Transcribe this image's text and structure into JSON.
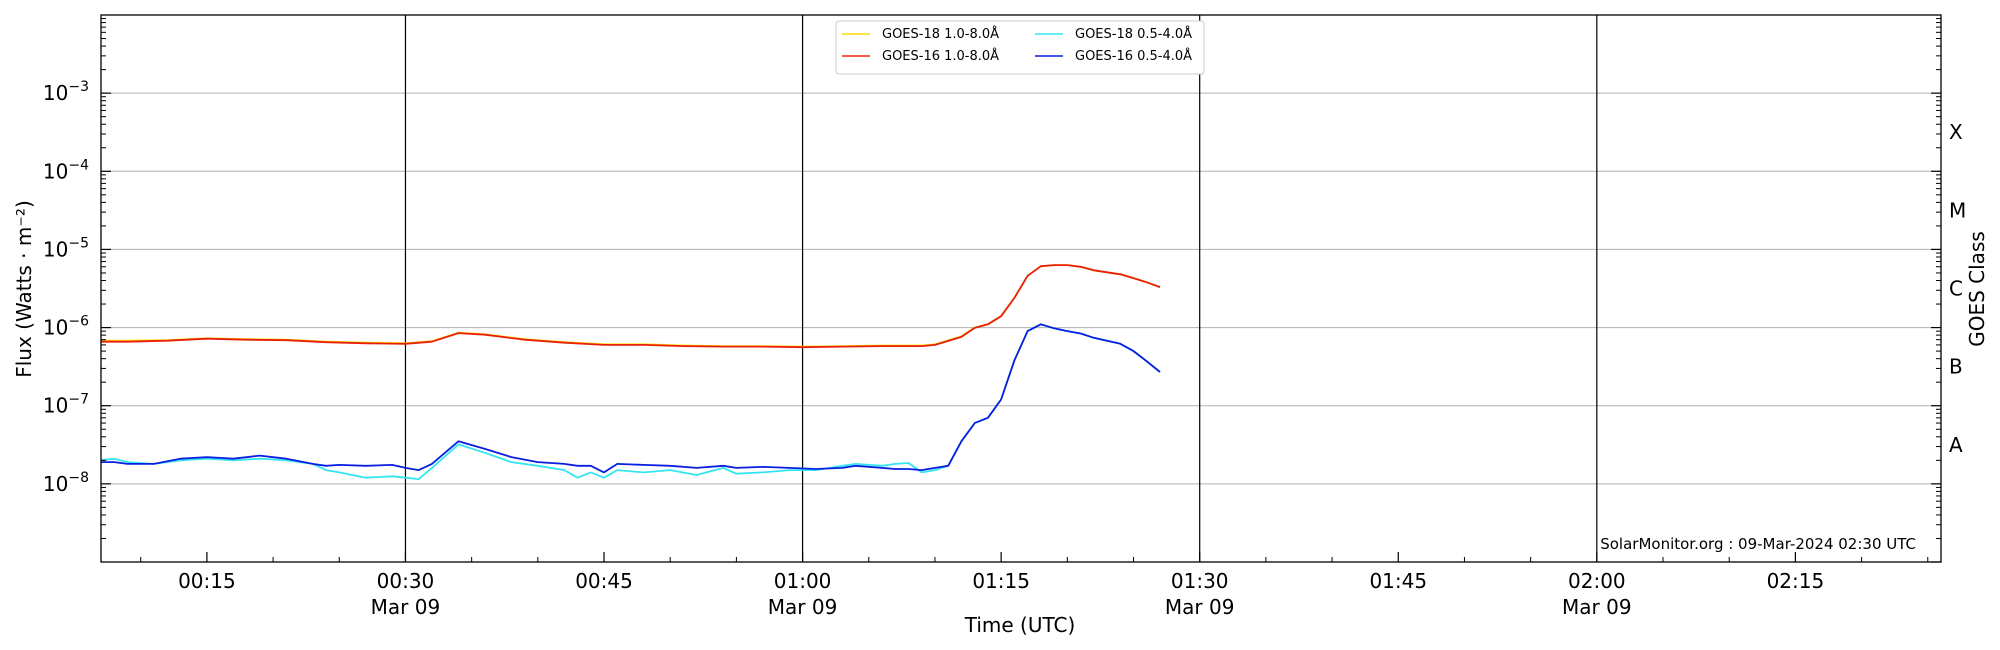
{
  "chart_data": {
    "type": "line",
    "title": "",
    "xlabel": "Time (UTC)",
    "ylabel": "Flux (Watts · m⁻²)",
    "ylabel_right": "GOES Class",
    "y_scale": "log",
    "ylim": [
      1e-09,
      0.01
    ],
    "xlim": [
      "00:07",
      "02:26"
    ],
    "grid": "horizontal",
    "legend_placement": "top-center",
    "credit": "SolarMonitor.org : 09-Mar-2024 02:30 UTC",
    "x_ticks": [
      {
        "time": "00:15",
        "label": "00:15",
        "sublabel": ""
      },
      {
        "time": "00:30",
        "label": "00:30",
        "sublabel": "Mar 09",
        "vline": true
      },
      {
        "time": "00:45",
        "label": "00:45",
        "sublabel": ""
      },
      {
        "time": "01:00",
        "label": "01:00",
        "sublabel": "Mar 09",
        "vline": true
      },
      {
        "time": "01:15",
        "label": "01:15",
        "sublabel": ""
      },
      {
        "time": "01:30",
        "label": "01:30",
        "sublabel": "Mar 09",
        "vline": true
      },
      {
        "time": "01:45",
        "label": "01:45",
        "sublabel": ""
      },
      {
        "time": "02:00",
        "label": "02:00",
        "sublabel": "Mar 09",
        "vline": true
      },
      {
        "time": "02:15",
        "label": "02:15",
        "sublabel": ""
      }
    ],
    "y_ticks": [
      {
        "value": 1e-08,
        "base": "10",
        "exp": "−8"
      },
      {
        "value": 1e-07,
        "base": "10",
        "exp": "−7"
      },
      {
        "value": 1e-06,
        "base": "10",
        "exp": "−6"
      },
      {
        "value": 1e-05,
        "base": "10",
        "exp": "−5"
      },
      {
        "value": 0.0001,
        "base": "10",
        "exp": "−4"
      },
      {
        "value": 0.001,
        "base": "10",
        "exp": "−3"
      }
    ],
    "class_labels": [
      {
        "label": "A",
        "value": 3.16e-08
      },
      {
        "label": "B",
        "value": 3.16e-07
      },
      {
        "label": "C",
        "value": 3.16e-06
      },
      {
        "label": "M",
        "value": 3.16e-05
      },
      {
        "label": "X",
        "value": 0.000316
      }
    ],
    "series": [
      {
        "name": "GOES-18 1.0-8.0Å",
        "color": "#ffd700",
        "legend_col": 0,
        "legend_row": 0,
        "points": [
          [
            "00:07",
            6.8e-07
          ],
          [
            "00:09",
            6.8e-07
          ],
          [
            "00:12",
            6.9e-07
          ],
          [
            "00:15",
            7.3e-07
          ],
          [
            "00:18",
            7.1e-07
          ],
          [
            "00:21",
            7e-07
          ],
          [
            "00:24",
            6.6e-07
          ],
          [
            "00:27",
            6.4e-07
          ],
          [
            "00:30",
            6.3e-07
          ],
          [
            "00:32",
            6.7e-07
          ],
          [
            "00:34",
            8.6e-07
          ],
          [
            "00:36",
            8.2e-07
          ],
          [
            "00:39",
            7.1e-07
          ],
          [
            "00:42",
            6.5e-07
          ],
          [
            "00:45",
            6.1e-07
          ],
          [
            "00:48",
            6.1e-07
          ],
          [
            "00:51",
            5.9e-07
          ],
          [
            "00:54",
            5.8e-07
          ],
          [
            "00:57",
            5.8e-07
          ],
          [
            "01:00",
            5.7e-07
          ],
          [
            "01:03",
            5.8e-07
          ],
          [
            "01:06",
            5.9e-07
          ],
          [
            "01:09",
            5.9e-07
          ],
          [
            "01:10",
            6.1e-07
          ],
          [
            "01:12",
            7.7e-07
          ],
          [
            "01:13",
            1e-06
          ],
          [
            "01:14",
            1.1e-06
          ],
          [
            "01:15",
            1.4e-06
          ],
          [
            "01:16",
            2.4e-06
          ],
          [
            "01:17",
            4.6e-06
          ],
          [
            "01:18",
            6.1e-06
          ],
          [
            "01:19",
            6.3e-06
          ],
          [
            "01:20",
            6.3e-06
          ],
          [
            "01:21",
            6e-06
          ],
          [
            "01:22",
            5.4e-06
          ],
          [
            "01:23",
            5.1e-06
          ],
          [
            "01:24",
            4.8e-06
          ],
          [
            "01:25",
            4.3e-06
          ],
          [
            "01:26",
            3.8e-06
          ],
          [
            "01:27",
            3.3e-06
          ]
        ]
      },
      {
        "name": "GOES-16 1.0-8.0Å",
        "color": "#e8200a",
        "legend_col": 0,
        "legend_row": 1,
        "points": [
          [
            "00:07",
            6.6e-07
          ],
          [
            "00:09",
            6.6e-07
          ],
          [
            "00:12",
            6.8e-07
          ],
          [
            "00:15",
            7.2e-07
          ],
          [
            "00:18",
            7e-07
          ],
          [
            "00:21",
            6.9e-07
          ],
          [
            "00:24",
            6.5e-07
          ],
          [
            "00:27",
            6.3e-07
          ],
          [
            "00:30",
            6.2e-07
          ],
          [
            "00:32",
            6.6e-07
          ],
          [
            "00:34",
            8.5e-07
          ],
          [
            "00:36",
            8.1e-07
          ],
          [
            "00:39",
            7e-07
          ],
          [
            "00:42",
            6.4e-07
          ],
          [
            "00:45",
            6e-07
          ],
          [
            "00:48",
            6e-07
          ],
          [
            "00:51",
            5.8e-07
          ],
          [
            "00:54",
            5.7e-07
          ],
          [
            "00:57",
            5.7e-07
          ],
          [
            "01:00",
            5.6e-07
          ],
          [
            "01:03",
            5.7e-07
          ],
          [
            "01:06",
            5.8e-07
          ],
          [
            "01:09",
            5.8e-07
          ],
          [
            "01:10",
            6e-07
          ],
          [
            "01:12",
            7.6e-07
          ],
          [
            "01:13",
            9.9e-07
          ],
          [
            "01:14",
            1.1e-06
          ],
          [
            "01:15",
            1.4e-06
          ],
          [
            "01:16",
            2.4e-06
          ],
          [
            "01:17",
            4.6e-06
          ],
          [
            "01:18",
            6.1e-06
          ],
          [
            "01:19",
            6.3e-06
          ],
          [
            "01:20",
            6.3e-06
          ],
          [
            "01:21",
            6e-06
          ],
          [
            "01:22",
            5.4e-06
          ],
          [
            "01:23",
            5.1e-06
          ],
          [
            "01:24",
            4.8e-06
          ],
          [
            "01:25",
            4.3e-06
          ],
          [
            "01:26",
            3.8e-06
          ],
          [
            "01:27",
            3.3e-06
          ]
        ]
      },
      {
        "name": "GOES-18 0.5-4.0Å",
        "color": "#33e6f0",
        "legend_col": 1,
        "legend_row": 0,
        "points": [
          [
            "00:07",
            2e-08
          ],
          [
            "00:08",
            2.1e-08
          ],
          [
            "00:09",
            1.9e-08
          ],
          [
            "00:11",
            1.8e-08
          ],
          [
            "00:13",
            2e-08
          ],
          [
            "00:15",
            2.1e-08
          ],
          [
            "00:17",
            2e-08
          ],
          [
            "00:19",
            2.1e-08
          ],
          [
            "00:21",
            2e-08
          ],
          [
            "00:23",
            1.8e-08
          ],
          [
            "00:24",
            1.5e-08
          ],
          [
            "00:25",
            1.4e-08
          ],
          [
            "00:27",
            1.2e-08
          ],
          [
            "00:29",
            1.25e-08
          ],
          [
            "00:30",
            1.2e-08
          ],
          [
            "00:31",
            1.15e-08
          ],
          [
            "00:32",
            1.6e-08
          ],
          [
            "00:34",
            3.2e-08
          ],
          [
            "00:36",
            2.5e-08
          ],
          [
            "00:38",
            1.9e-08
          ],
          [
            "00:40",
            1.7e-08
          ],
          [
            "00:42",
            1.5e-08
          ],
          [
            "00:43",
            1.2e-08
          ],
          [
            "00:44",
            1.4e-08
          ],
          [
            "00:45",
            1.2e-08
          ],
          [
            "00:46",
            1.5e-08
          ],
          [
            "00:48",
            1.4e-08
          ],
          [
            "00:50",
            1.5e-08
          ],
          [
            "00:52",
            1.3e-08
          ],
          [
            "00:54",
            1.6e-08
          ],
          [
            "00:55",
            1.35e-08
          ],
          [
            "00:57",
            1.4e-08
          ],
          [
            "00:59",
            1.5e-08
          ],
          [
            "01:01",
            1.5e-08
          ],
          [
            "01:03",
            1.7e-08
          ],
          [
            "01:04",
            1.8e-08
          ],
          [
            "01:06",
            1.7e-08
          ],
          [
            "01:07",
            1.8e-08
          ],
          [
            "01:08",
            1.85e-08
          ],
          [
            "01:09",
            1.4e-08
          ],
          [
            "01:10",
            1.5e-08
          ],
          [
            "01:11",
            1.7e-08
          ],
          [
            "01:12",
            3.5e-08
          ],
          [
            "01:13",
            6e-08
          ],
          [
            "01:14",
            7e-08
          ],
          [
            "01:15",
            1.2e-07
          ],
          [
            "01:16",
            3.8e-07
          ],
          [
            "01:17",
            9e-07
          ],
          [
            "01:18",
            1.1e-06
          ],
          [
            "01:19",
            9.8e-07
          ],
          [
            "01:20",
            9e-07
          ],
          [
            "01:21",
            8.4e-07
          ],
          [
            "01:22",
            7.4e-07
          ],
          [
            "01:23",
            6.8e-07
          ],
          [
            "01:24",
            6.2e-07
          ],
          [
            "01:25",
            5e-07
          ],
          [
            "01:26",
            3.7e-07
          ],
          [
            "01:27",
            2.7e-07
          ]
        ]
      },
      {
        "name": "GOES-16 0.5-4.0Å",
        "color": "#0a1ee0",
        "legend_col": 1,
        "legend_row": 1,
        "points": [
          [
            "00:07",
            1.9e-08
          ],
          [
            "00:08",
            1.9e-08
          ],
          [
            "00:09",
            1.8e-08
          ],
          [
            "00:11",
            1.8e-08
          ],
          [
            "00:13",
            2.1e-08
          ],
          [
            "00:15",
            2.2e-08
          ],
          [
            "00:17",
            2.1e-08
          ],
          [
            "00:19",
            2.3e-08
          ],
          [
            "00:21",
            2.1e-08
          ],
          [
            "00:23",
            1.8e-08
          ],
          [
            "00:24",
            1.7e-08
          ],
          [
            "00:25",
            1.75e-08
          ],
          [
            "00:27",
            1.7e-08
          ],
          [
            "00:29",
            1.75e-08
          ],
          [
            "00:30",
            1.6e-08
          ],
          [
            "00:31",
            1.5e-08
          ],
          [
            "00:32",
            1.8e-08
          ],
          [
            "00:34",
            3.5e-08
          ],
          [
            "00:36",
            2.8e-08
          ],
          [
            "00:38",
            2.2e-08
          ],
          [
            "00:40",
            1.9e-08
          ],
          [
            "00:42",
            1.8e-08
          ],
          [
            "00:43",
            1.7e-08
          ],
          [
            "00:44",
            1.7e-08
          ],
          [
            "00:45",
            1.4e-08
          ],
          [
            "00:46",
            1.8e-08
          ],
          [
            "00:48",
            1.75e-08
          ],
          [
            "00:50",
            1.7e-08
          ],
          [
            "00:52",
            1.6e-08
          ],
          [
            "00:54",
            1.7e-08
          ],
          [
            "00:55",
            1.6e-08
          ],
          [
            "00:57",
            1.65e-08
          ],
          [
            "00:59",
            1.6e-08
          ],
          [
            "01:01",
            1.55e-08
          ],
          [
            "01:03",
            1.6e-08
          ],
          [
            "01:04",
            1.7e-08
          ],
          [
            "01:06",
            1.6e-08
          ],
          [
            "01:07",
            1.55e-08
          ],
          [
            "01:08",
            1.55e-08
          ],
          [
            "01:09",
            1.5e-08
          ],
          [
            "01:10",
            1.6e-08
          ],
          [
            "01:11",
            1.7e-08
          ],
          [
            "01:12",
            3.5e-08
          ],
          [
            "01:13",
            6e-08
          ],
          [
            "01:14",
            7e-08
          ],
          [
            "01:15",
            1.2e-07
          ],
          [
            "01:16",
            3.8e-07
          ],
          [
            "01:17",
            9e-07
          ],
          [
            "01:18",
            1.1e-06
          ],
          [
            "01:19",
            9.8e-07
          ],
          [
            "01:20",
            9e-07
          ],
          [
            "01:21",
            8.4e-07
          ],
          [
            "01:22",
            7.4e-07
          ],
          [
            "01:23",
            6.8e-07
          ],
          [
            "01:24",
            6.2e-07
          ],
          [
            "01:25",
            5e-07
          ],
          [
            "01:26",
            3.7e-07
          ],
          [
            "01:27",
            2.7e-07
          ]
        ]
      }
    ]
  }
}
